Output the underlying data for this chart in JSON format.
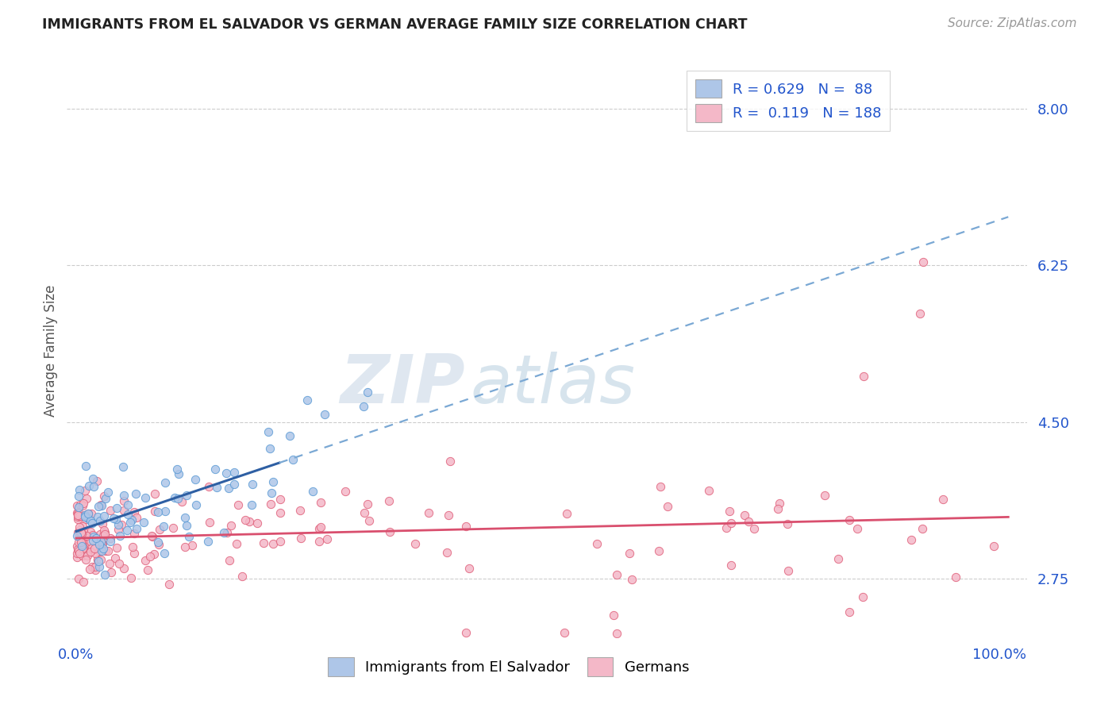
{
  "title": "IMMIGRANTS FROM EL SALVADOR VS GERMAN AVERAGE FAMILY SIZE CORRELATION CHART",
  "source_text": "Source: ZipAtlas.com",
  "ylabel": "Average Family Size",
  "y_ticks": [
    2.75,
    4.5,
    6.25,
    8.0
  ],
  "xlim": [
    -1,
    103
  ],
  "ylim": [
    2.1,
    8.5
  ],
  "series": [
    {
      "name": "Immigrants from El Salvador",
      "color": "#aec6e8",
      "edge_color": "#5b9bd5",
      "R": 0.629,
      "N": 88,
      "trend_color": "#2e5fa3",
      "trend_dashed_color": "#7aa8d4"
    },
    {
      "name": "Germans",
      "color": "#f4b8c8",
      "edge_color": "#e0607a",
      "R": 0.119,
      "N": 188,
      "trend_color": "#d94f6e"
    }
  ],
  "legend_color": "#2255cc",
  "watermark_zip_color": "#c8d4e0",
  "watermark_atlas_color": "#a0bcd0",
  "background_color": "#ffffff",
  "grid_color": "#cccccc",
  "title_color": "#222222",
  "ylabel_color": "#555555",
  "tick_label_color": "#2255cc"
}
